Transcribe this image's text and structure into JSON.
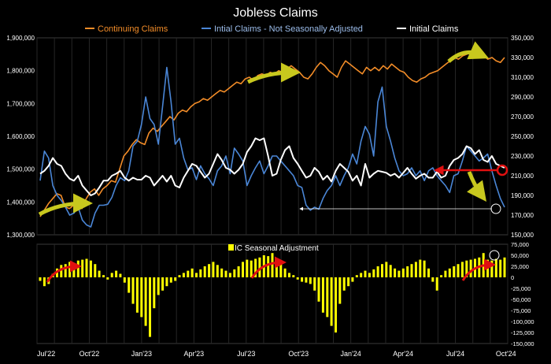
{
  "chart_data": [
    {
      "type": "line",
      "title": "Jobless Claims",
      "legend_placement": "top",
      "y_left": {
        "min": 1300000,
        "max": 1900000,
        "ticks": [
          "1,300,000",
          "1,400,000",
          "1,500,000",
          "1,600,000",
          "1,700,000",
          "1,800,000",
          "1,900,000"
        ]
      },
      "y_right": {
        "min": 150000,
        "max": 350000,
        "ticks": [
          "150,000",
          "170,000",
          "190,000",
          "210,000",
          "230,000",
          "250,000",
          "270,000",
          "290,000",
          "310,000",
          "330,000",
          "350,000"
        ]
      },
      "series": [
        {
          "name": "Continuing Claims",
          "axis": "left",
          "color": "#F28C28",
          "values": [
            1355000,
            1375000,
            1395000,
            1410000,
            1425000,
            1420000,
            1385000,
            1380000,
            1390000,
            1395000,
            1380000,
            1410000,
            1430000,
            1440000,
            1420000,
            1440000,
            1450000,
            1465000,
            1460000,
            1500000,
            1540000,
            1555000,
            1575000,
            1590000,
            1580000,
            1575000,
            1610000,
            1625000,
            1615000,
            1630000,
            1645000,
            1660000,
            1650000,
            1670000,
            1680000,
            1675000,
            1690000,
            1700000,
            1705000,
            1715000,
            1710000,
            1720000,
            1730000,
            1740000,
            1735000,
            1745000,
            1755000,
            1765000,
            1760000,
            1775000,
            1780000,
            1770000,
            1785000,
            1790000,
            1785000,
            1795000,
            1790000,
            1800000,
            1795000,
            1805000,
            1815000,
            1805000,
            1795000,
            1780000,
            1775000,
            1790000,
            1810000,
            1825000,
            1815000,
            1800000,
            1790000,
            1780000,
            1810000,
            1830000,
            1820000,
            1810000,
            1800000,
            1790000,
            1810000,
            1800000,
            1810000,
            1800000,
            1815000,
            1805000,
            1820000,
            1810000,
            1800000,
            1795000,
            1780000,
            1770000,
            1765000,
            1775000,
            1780000,
            1790000,
            1795000,
            1800000,
            1810000,
            1820000,
            1830000,
            1840000,
            1835000,
            1845000,
            1850000,
            1855000,
            1845000,
            1840000,
            1845000,
            1835000,
            1840000,
            1830000,
            1825000,
            1840000
          ]
        },
        {
          "name": "Intial Claims - Not Seasonally Adjusted",
          "axis": "right",
          "color": "#4A86D6",
          "values": [
            205000,
            235000,
            228000,
            200000,
            190000,
            185000,
            178000,
            170000,
            172000,
            178000,
            165000,
            160000,
            158000,
            172000,
            180000,
            180000,
            181000,
            188000,
            200000,
            208000,
            205000,
            215000,
            240000,
            245000,
            262000,
            290000,
            268000,
            262000,
            242000,
            280000,
            320000,
            285000,
            242000,
            248000,
            228000,
            216000,
            218000,
            206000,
            220000,
            212000,
            207000,
            200000,
            215000,
            220000,
            230000,
            212000,
            238000,
            232000,
            225000,
            200000,
            210000,
            218000,
            225000,
            212000,
            220000,
            230000,
            230000,
            225000,
            220000,
            215000,
            210000,
            200000,
            198000,
            180000,
            175000,
            178000,
            176000,
            187000,
            195000,
            200000,
            210000,
            200000,
            210000,
            218000,
            232000,
            222000,
            245000,
            260000,
            252000,
            230000,
            285000,
            300000,
            260000,
            245000,
            228000,
            215000,
            210000,
            212000,
            218000,
            210000,
            215000,
            205000,
            215000,
            218000,
            210000,
            205000,
            200000,
            193000,
            210000,
            212000,
            225000,
            240000,
            235000,
            230000,
            225000,
            228000,
            232000,
            215000,
            200000,
            187000,
            178000
          ]
        },
        {
          "name": "Initial Claims",
          "axis": "right",
          "color": "#FFFFFF",
          "values": [
            212000,
            215000,
            220000,
            228000,
            222000,
            220000,
            212000,
            207000,
            205000,
            210000,
            200000,
            195000,
            190000,
            192000,
            198000,
            205000,
            205000,
            210000,
            212000,
            215000,
            208000,
            205000,
            208000,
            206000,
            206000,
            210000,
            208000,
            200000,
            205000,
            210000,
            204000,
            210000,
            200000,
            198000,
            208000,
            215000,
            222000,
            220000,
            214000,
            208000,
            212000,
            222000,
            232000,
            226000,
            218000,
            216000,
            212000,
            216000,
            222000,
            234000,
            240000,
            248000,
            246000,
            248000,
            230000,
            210000,
            212000,
            226000,
            236000,
            240000,
            228000,
            222000,
            215000,
            208000,
            210000,
            218000,
            214000,
            206000,
            210000,
            204000,
            215000,
            222000,
            218000,
            214000,
            205000,
            210000,
            200000,
            222000,
            208000,
            212000,
            215000,
            214000,
            213000,
            210000,
            212000,
            208000,
            213000,
            218000,
            212000,
            207000,
            210000,
            212000,
            208000,
            208000,
            214000,
            208000,
            210000,
            220000,
            226000,
            228000,
            232000,
            240000,
            238000,
            232000,
            236000,
            226000,
            224000,
            230000,
            222000,
            220000,
            218000
          ]
        }
      ],
      "annotations": {
        "continuing_claims_low": "1,350,000",
        "initial_claims_reference": "210,000",
        "nsa_claims_reference": "175,000"
      }
    },
    {
      "type": "bar",
      "title": "IC Seasonal Adjustment",
      "color": "#FFFF00",
      "y": {
        "min": -150000,
        "max": 75000,
        "ticks": [
          "75,000",
          "50,000",
          "25,000",
          "0",
          "-25,000",
          "-50,000",
          "-75,000",
          "-100,000",
          "-125,000",
          "-150,000"
        ]
      },
      "x_ticks": [
        "Jul'22",
        "Oct'22",
        "Jan'23",
        "Apr'23",
        "Jul'23",
        "Oct'23",
        "Jan'24",
        "Apr'24",
        "Jul'24",
        "Oct'24"
      ],
      "values": [
        -8000,
        -20000,
        -15000,
        8000,
        20000,
        28000,
        30000,
        35000,
        32000,
        38000,
        40000,
        42000,
        38000,
        30000,
        15000,
        5000,
        -5000,
        10000,
        15000,
        8000,
        -12000,
        -35000,
        -60000,
        -80000,
        -90000,
        -110000,
        -135000,
        -70000,
        -40000,
        -30000,
        -20000,
        -12000,
        -8000,
        5000,
        10000,
        15000,
        20000,
        10000,
        18000,
        25000,
        30000,
        35000,
        28000,
        20000,
        15000,
        10000,
        18000,
        25000,
        35000,
        40000,
        38000,
        42000,
        45000,
        50000,
        48000,
        55000,
        40000,
        30000,
        20000,
        10000,
        5000,
        -5000,
        -10000,
        -12000,
        -15000,
        -30000,
        -55000,
        -80000,
        -90000,
        -110000,
        -125000,
        -60000,
        -30000,
        -20000,
        -10000,
        5000,
        10000,
        15000,
        10000,
        18000,
        25000,
        30000,
        35000,
        28000,
        20000,
        15000,
        20000,
        25000,
        30000,
        35000,
        40000,
        38000,
        20000,
        -10000,
        -30000,
        5000,
        15000,
        20000,
        25000,
        30000,
        35000,
        38000,
        40000,
        42000,
        45000,
        55000,
        40000,
        38000,
        42000,
        40000,
        45000
      ]
    }
  ]
}
